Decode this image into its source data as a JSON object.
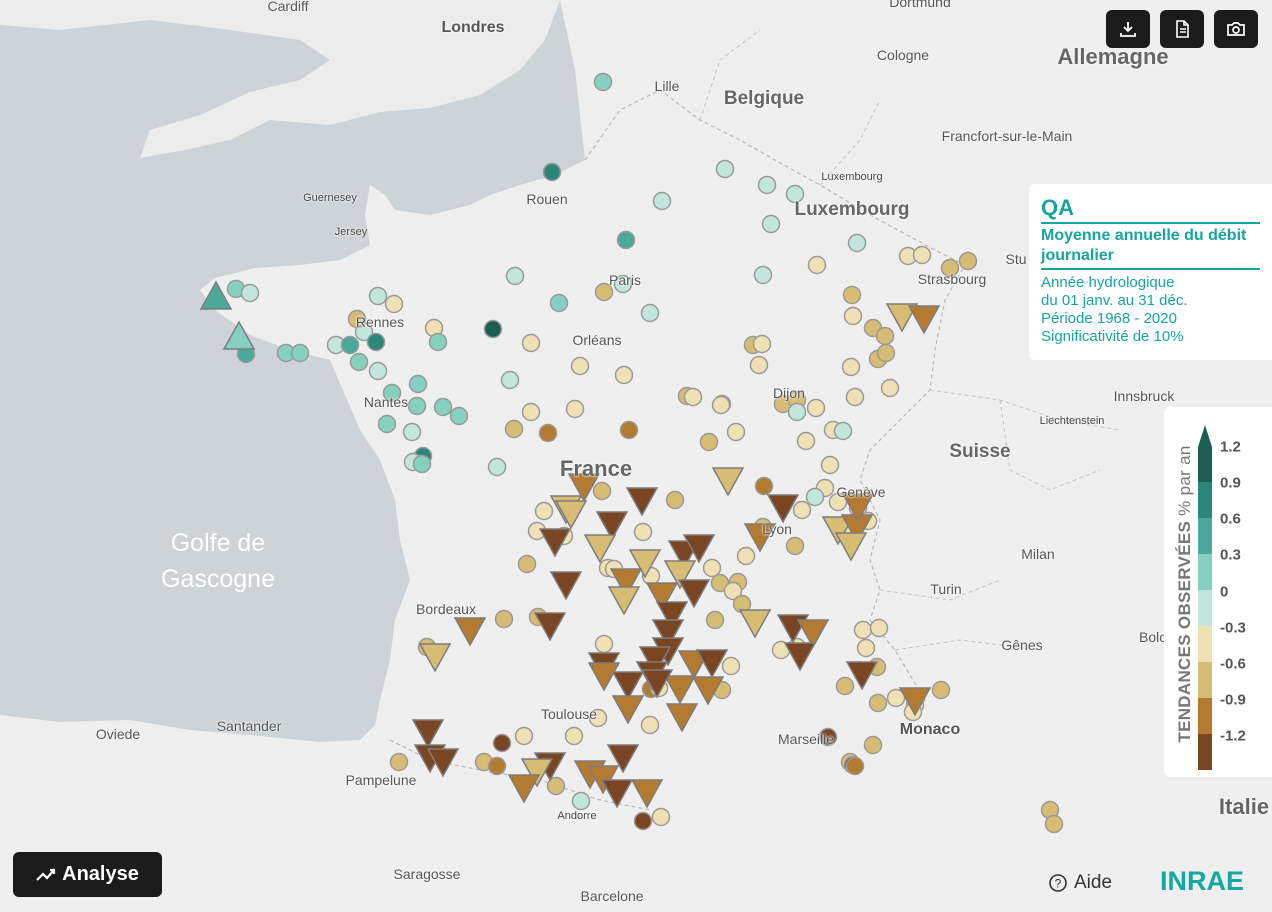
{
  "toolbar": {
    "download_icon": "download-icon",
    "document_icon": "document-icon",
    "camera_icon": "camera-icon"
  },
  "info": {
    "code": "QA",
    "variable": "Moyenne annuelle du débit journalier",
    "lines": [
      "Année hydrologique",
      "du 01 janv. au 31 déc.",
      "Période 1968 - 2020",
      "Significativité de 10%"
    ]
  },
  "legend": {
    "title_bold": "TENDANCES OBSERVÉES",
    "title_rest": " % par an",
    "labels": [
      "1.2",
      "0.9",
      "0.6",
      "0.3",
      "0",
      "-0.3",
      "-0.6",
      "-0.9",
      "-1.2"
    ],
    "colors": [
      "#1c5f52",
      "#2a8779",
      "#4aa99a",
      "#85d0bf",
      "#c2e6dc",
      "#efe1b3",
      "#d7bd73",
      "#b37a30",
      "#7a4522"
    ]
  },
  "places": [
    {
      "name": "Cardiff",
      "cls": "small"
    },
    {
      "name": "Londres",
      "cls": "bold"
    },
    {
      "name": "Dortmund",
      "cls": "small"
    },
    {
      "name": "Cologne",
      "cls": "small"
    },
    {
      "name": "Allemagne",
      "cls": "country"
    },
    {
      "name": "Lille",
      "cls": "small"
    },
    {
      "name": "Belgique",
      "cls": "country-med"
    },
    {
      "name": "Francfort-sur-le-Main",
      "cls": "small"
    },
    {
      "name": "Luxembourg",
      "cls": "tiny"
    },
    {
      "name": "Luxembourg",
      "cls": "country-med"
    },
    {
      "name": "Guernesey",
      "cls": "tiny"
    },
    {
      "name": "Jersey",
      "cls": "tiny"
    },
    {
      "name": "Rouen",
      "cls": "small"
    },
    {
      "name": "Paris",
      "cls": "small"
    },
    {
      "name": "Rennes",
      "cls": "small"
    },
    {
      "name": "Orléans",
      "cls": "small"
    },
    {
      "name": "Strasbourg",
      "cls": "small"
    },
    {
      "name": "Stu",
      "cls": "small"
    },
    {
      "name": "Dijon",
      "cls": "small"
    },
    {
      "name": "Nantes",
      "cls": "small"
    },
    {
      "name": "Innsbruck",
      "cls": "small"
    },
    {
      "name": "Liechtenstein",
      "cls": "tiny"
    },
    {
      "name": "Suisse",
      "cls": "country-med"
    },
    {
      "name": "France",
      "cls": "country"
    },
    {
      "name": "Genève",
      "cls": "small"
    },
    {
      "name": "Lyon",
      "cls": "small"
    },
    {
      "name": "Golfe de Gascogne",
      "cls": "sea"
    },
    {
      "name": "Milan",
      "cls": "small"
    },
    {
      "name": "Turin",
      "cls": "small"
    },
    {
      "name": "Bordeaux",
      "cls": "small"
    },
    {
      "name": "Bolo",
      "cls": "small"
    },
    {
      "name": "Gênes",
      "cls": "small"
    },
    {
      "name": "Monaco",
      "cls": "bold"
    },
    {
      "name": "Toulouse",
      "cls": "small"
    },
    {
      "name": "Santander",
      "cls": "small"
    },
    {
      "name": "Oviede",
      "cls": "small"
    },
    {
      "name": "Marseille",
      "cls": "small"
    },
    {
      "name": "Pampelune",
      "cls": "small"
    },
    {
      "name": "Andorre",
      "cls": "tiny"
    },
    {
      "name": "Italie",
      "cls": "country"
    },
    {
      "name": "Saragosse",
      "cls": "small"
    },
    {
      "name": "Barcelone",
      "cls": "small"
    }
  ],
  "analyse": {
    "label": "Analyse",
    "icon": "trend-line-icon"
  },
  "aide": {
    "label": "Aide",
    "icon": "help-circle-icon"
  },
  "logo": {
    "text": "INRAE"
  }
}
